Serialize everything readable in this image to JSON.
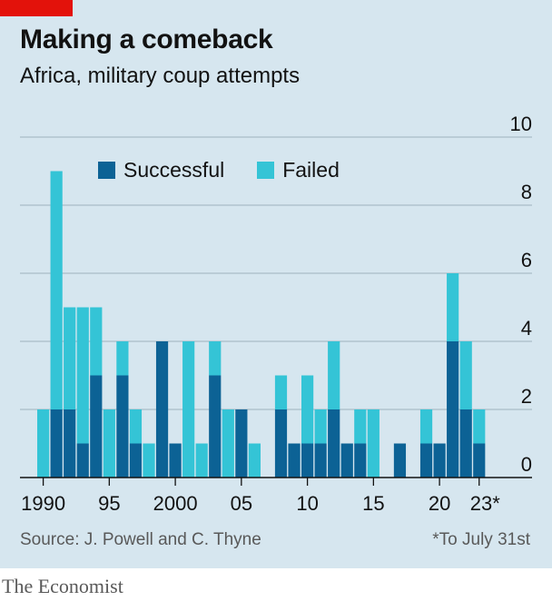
{
  "header": {
    "title": "Making a comeback",
    "subtitle": "Africa, military coup attempts"
  },
  "footer": {
    "source": "Source: J. Powell and C. Thyne",
    "note": "*To July 31st",
    "brand": "The Economist"
  },
  "colors": {
    "successful": "#0c6295",
    "failed": "#34c4d6",
    "grid": "#a9bcc8",
    "axis": "#121212"
  },
  "chart_data": {
    "type": "bar",
    "stacked": true,
    "x": [
      1990,
      1991,
      1992,
      1993,
      1994,
      1995,
      1996,
      1997,
      1998,
      1999,
      2000,
      2001,
      2002,
      2003,
      2004,
      2005,
      2006,
      2007,
      2008,
      2009,
      2010,
      2011,
      2012,
      2013,
      2014,
      2015,
      2016,
      2017,
      2018,
      2019,
      2020,
      2021,
      2022,
      2023
    ],
    "series": [
      {
        "name": "Successful",
        "values": [
          0,
          2,
          2,
          1,
          3,
          0,
          3,
          1,
          0,
          4,
          1,
          0,
          0,
          3,
          0,
          2,
          0,
          0,
          2,
          1,
          1,
          1,
          2,
          1,
          1,
          0,
          0,
          1,
          0,
          1,
          1,
          4,
          2,
          1
        ]
      },
      {
        "name": "Failed",
        "values": [
          2,
          7,
          3,
          4,
          2,
          2,
          1,
          1,
          1,
          0,
          0,
          4,
          1,
          1,
          2,
          0,
          1,
          0,
          1,
          0,
          2,
          1,
          2,
          0,
          1,
          2,
          0,
          0,
          0,
          1,
          0,
          2,
          2,
          1
        ]
      }
    ],
    "xtick_labels": [
      {
        "x": 1990,
        "label": "1990"
      },
      {
        "x": 1995,
        "label": "95"
      },
      {
        "x": 2000,
        "label": "2000"
      },
      {
        "x": 2005,
        "label": "05"
      },
      {
        "x": 2010,
        "label": "10"
      },
      {
        "x": 2015,
        "label": "15"
      },
      {
        "x": 2020,
        "label": "20"
      },
      {
        "x": 2023,
        "label": "23*"
      }
    ],
    "yticks": [
      0,
      2,
      4,
      6,
      8,
      10
    ],
    "ylim": [
      0,
      10
    ],
    "xlabel": "",
    "ylabel": "",
    "grid": true,
    "legend": "top-left",
    "y_axis_side": "right"
  }
}
